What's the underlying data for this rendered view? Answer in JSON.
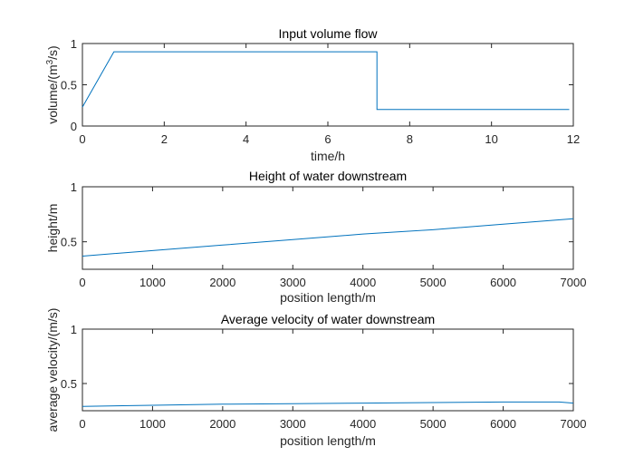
{
  "chart_data": [
    {
      "type": "line",
      "title": "Input volume flow",
      "xlabel": "time/h",
      "ylabel": "volume/(m",
      "ylabel_sup": "3",
      "ylabel_tail": "/s)",
      "xlim": [
        0,
        12
      ],
      "ylim": [
        0,
        1
      ],
      "xticks": [
        0,
        2,
        4,
        6,
        8,
        10,
        12
      ],
      "yticks": [
        0,
        0.5,
        1
      ],
      "xtick_labels": [
        "0",
        "2",
        "4",
        "6",
        "8",
        "10",
        "12"
      ],
      "ytick_labels": [
        "0",
        "0.5",
        "1"
      ],
      "series": [
        {
          "color": "#0072BD",
          "x": [
            0,
            0.77,
            7.2,
            7.2,
            11.9
          ],
          "y": [
            0.23,
            0.9,
            0.9,
            0.2,
            0.2
          ]
        }
      ]
    },
    {
      "type": "line",
      "title": "Height of water downstream",
      "xlabel": "position length/m",
      "ylabel": "height/m",
      "xlim": [
        0,
        7000
      ],
      "ylim": [
        0.25,
        1
      ],
      "xticks": [
        0,
        1000,
        2000,
        3000,
        4000,
        5000,
        6000,
        7000
      ],
      "yticks": [
        0.5,
        1
      ],
      "xtick_labels": [
        "0",
        "1000",
        "2000",
        "3000",
        "4000",
        "5000",
        "6000",
        "7000"
      ],
      "ytick_labels": [
        "0.5",
        "1"
      ],
      "series": [
        {
          "color": "#0072BD",
          "x": [
            0,
            1000,
            2000,
            3000,
            4000,
            5000,
            6000,
            7000
          ],
          "y": [
            0.37,
            0.42,
            0.47,
            0.52,
            0.57,
            0.61,
            0.66,
            0.71
          ]
        }
      ]
    },
    {
      "type": "line",
      "title": "Average velocity of water downstream",
      "xlabel": "position length/m",
      "ylabel": "average velocity/(m/s)",
      "xlim": [
        0,
        7000
      ],
      "ylim": [
        0.25,
        1
      ],
      "xticks": [
        0,
        1000,
        2000,
        3000,
        4000,
        5000,
        6000,
        7000
      ],
      "yticks": [
        0.5,
        1
      ],
      "xtick_labels": [
        "0",
        "1000",
        "2000",
        "3000",
        "4000",
        "5000",
        "6000",
        "7000"
      ],
      "ytick_labels": [
        "0.5",
        "1"
      ],
      "series": [
        {
          "color": "#0072BD",
          "x": [
            0,
            1000,
            2000,
            3000,
            4000,
            5000,
            6000,
            6800,
            7000
          ],
          "y": [
            0.29,
            0.3,
            0.31,
            0.315,
            0.32,
            0.325,
            0.33,
            0.33,
            0.32
          ]
        }
      ]
    }
  ]
}
